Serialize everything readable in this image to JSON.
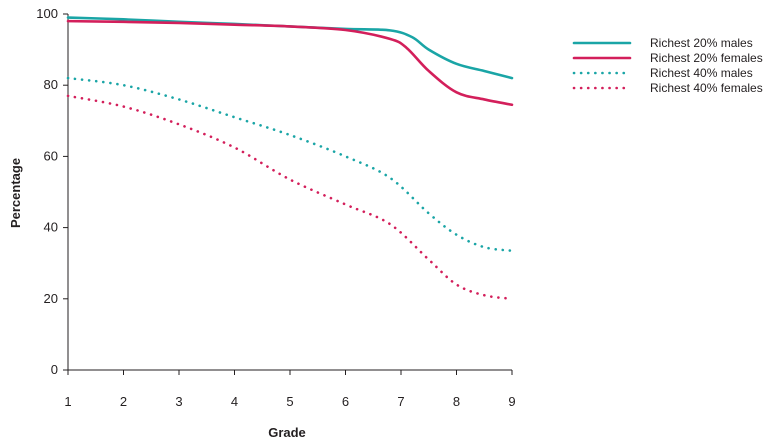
{
  "chart_data": {
    "type": "line",
    "title": "",
    "xlabel": "Grade",
    "ylabel": "Percentage",
    "xlim": [
      1,
      9
    ],
    "ylim": [
      0,
      100
    ],
    "xticks": [
      1,
      2,
      3,
      4,
      5,
      6,
      7,
      8,
      9
    ],
    "yticks": [
      0,
      20,
      40,
      60,
      80,
      100
    ],
    "grid": false,
    "legend_position": "top-right",
    "series": [
      {
        "name": "Richest 20% males",
        "color": "#1aa5a6",
        "style": "solid",
        "x": [
          1,
          2,
          3,
          4,
          5,
          6,
          6.8,
          7.2,
          7.5,
          8,
          8.5,
          9
        ],
        "y": [
          99,
          98.5,
          97.8,
          97.2,
          96.5,
          95.8,
          95.4,
          93.5,
          90,
          86,
          84,
          82
        ]
      },
      {
        "name": "Richest 20% females",
        "color": "#d31f5b",
        "style": "solid",
        "x": [
          1,
          2,
          3,
          4,
          5,
          6,
          6.8,
          7.1,
          7.5,
          8,
          8.5,
          9
        ],
        "y": [
          98,
          97.8,
          97.5,
          97,
          96.5,
          95.5,
          93,
          90.5,
          84,
          78,
          76,
          74.5
        ]
      },
      {
        "name": "Richest 40% males",
        "color": "#1aa5a6",
        "style": "dotted",
        "x": [
          1,
          2,
          3,
          4,
          5,
          6,
          6.8,
          7.5,
          8,
          8.5,
          9
        ],
        "y": [
          82,
          80,
          76,
          71,
          66,
          60,
          54,
          44,
          38,
          34.5,
          33.5
        ]
      },
      {
        "name": "Richest 40% females",
        "color": "#d31f5b",
        "style": "dotted",
        "x": [
          1,
          2,
          3,
          4,
          5,
          6,
          6.8,
          7.5,
          8,
          8.5,
          9
        ],
        "y": [
          77,
          74,
          69,
          62.5,
          53.5,
          46.5,
          41,
          31,
          24,
          21,
          20
        ]
      }
    ]
  }
}
